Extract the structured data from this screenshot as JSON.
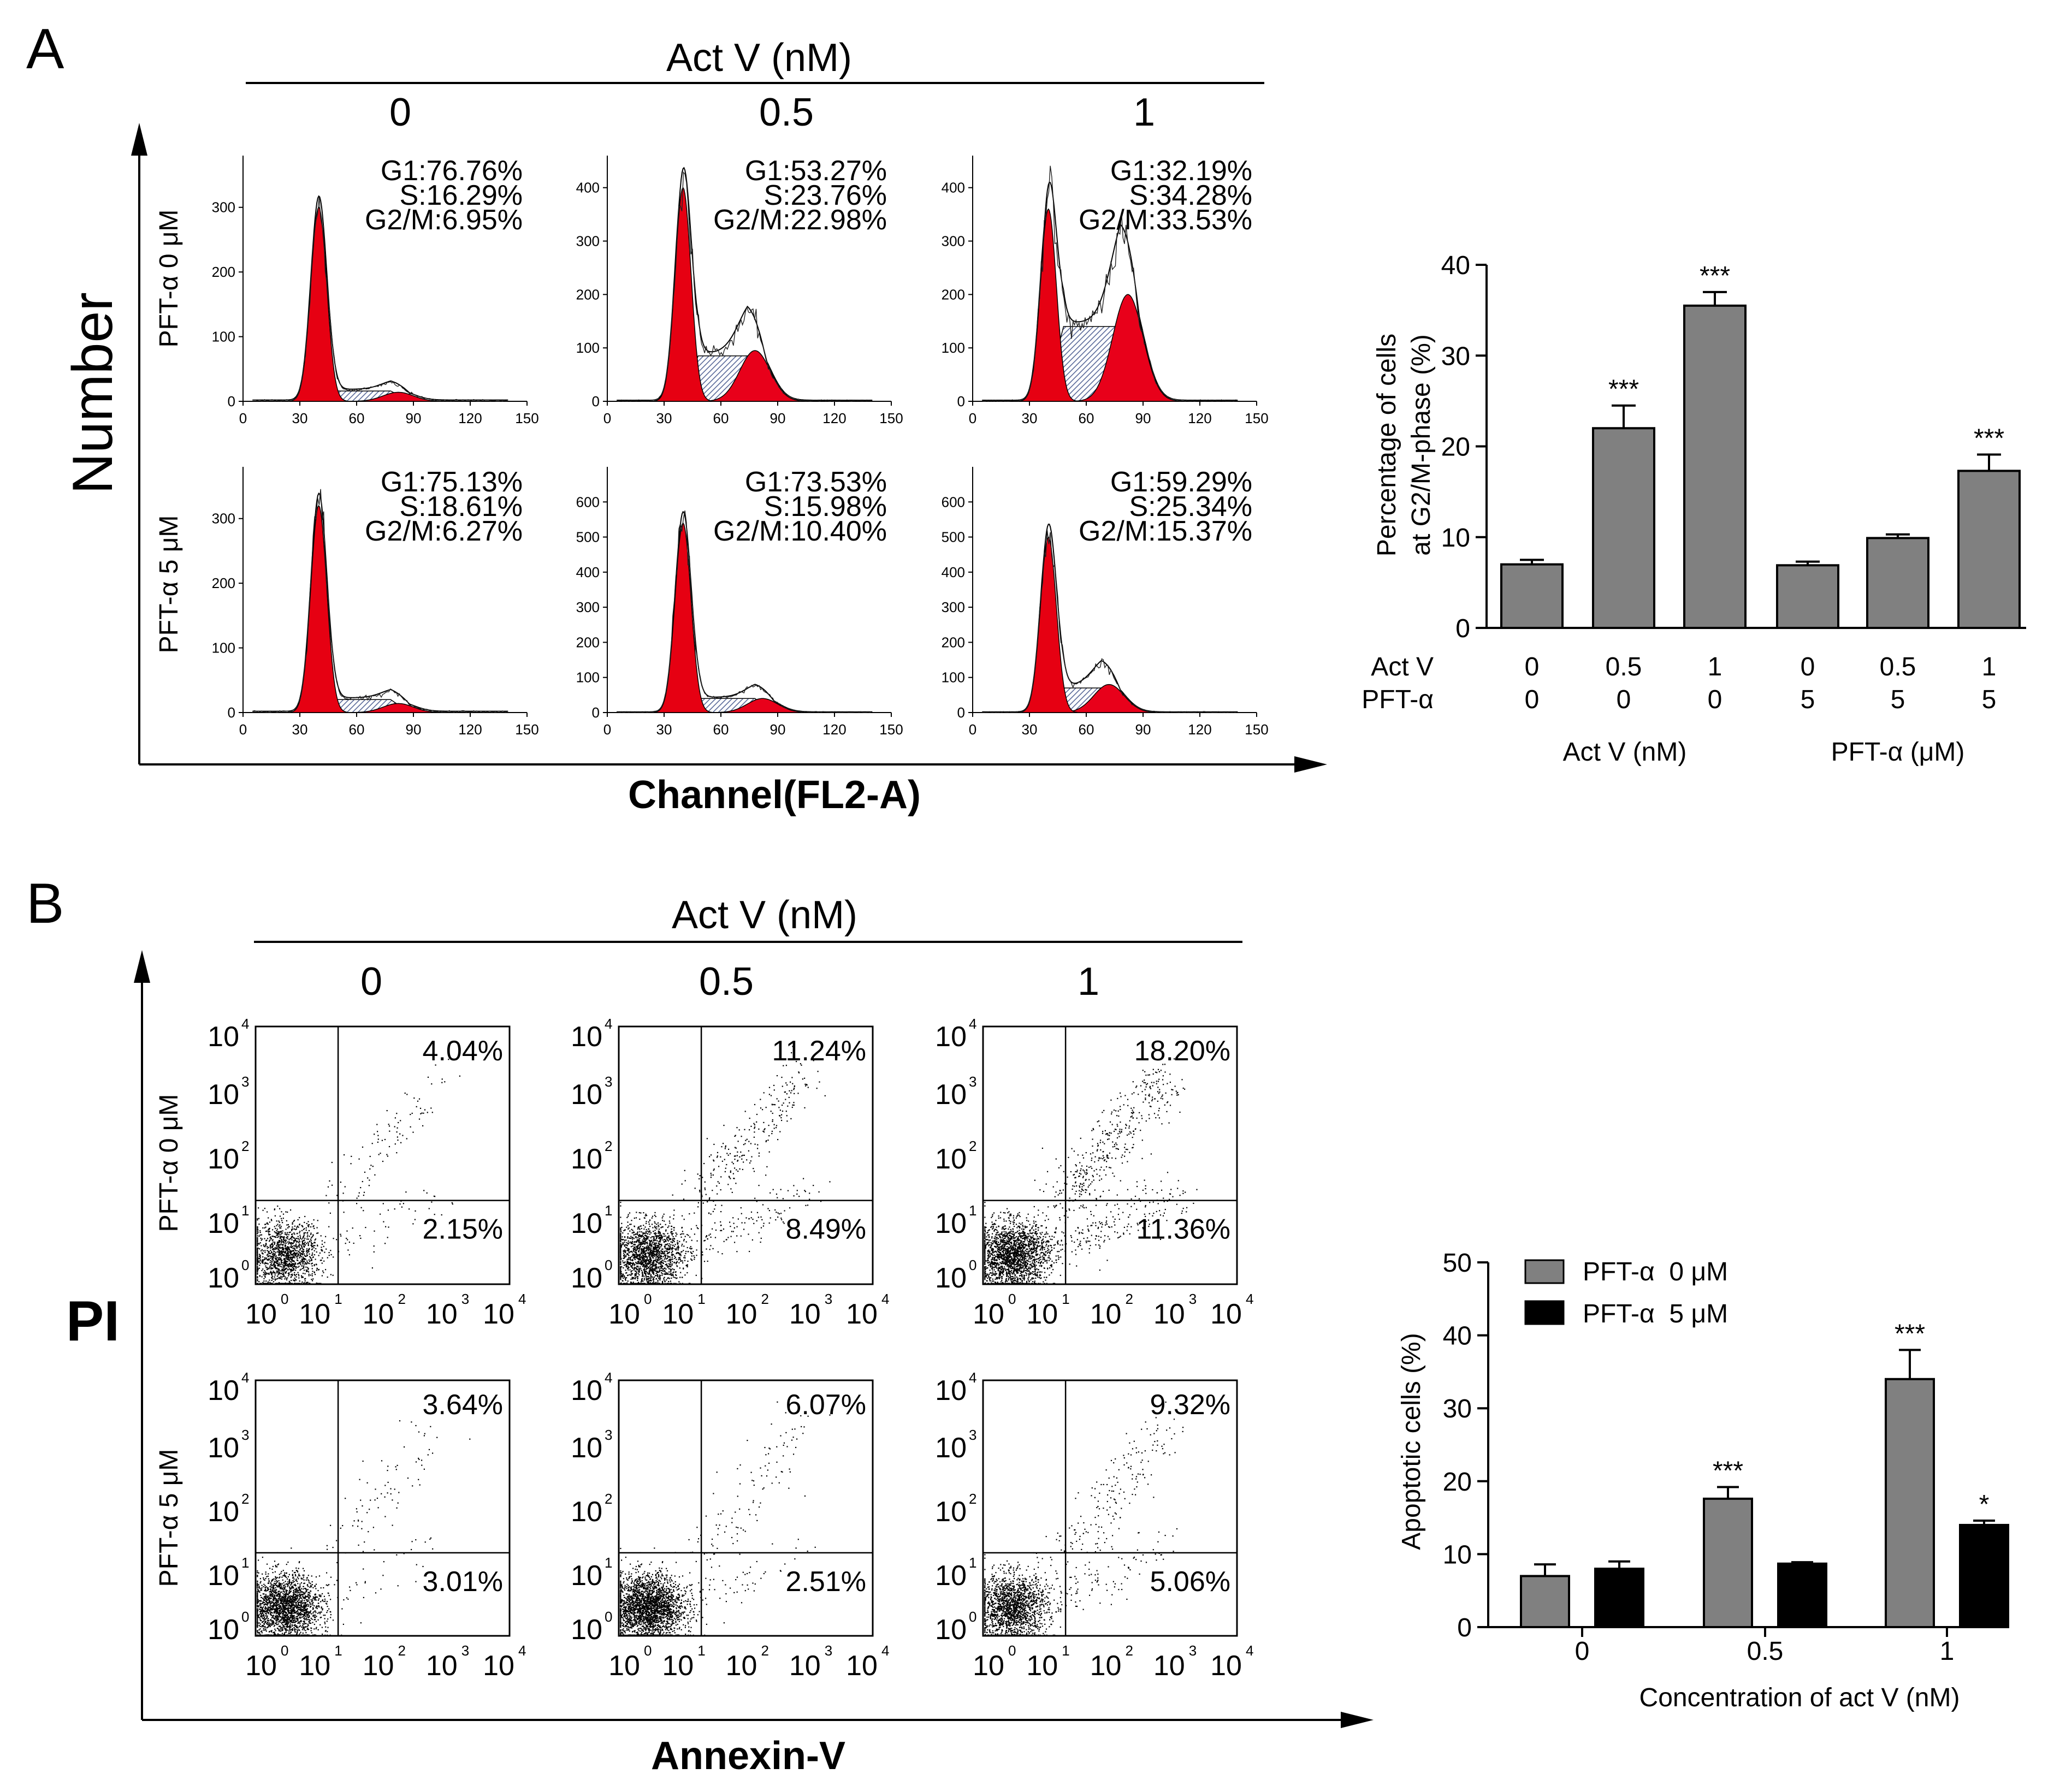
{
  "panelA": {
    "letter": "A",
    "header": "Act V (nM)",
    "columns": [
      "0",
      "0.5",
      "1"
    ],
    "rows": [
      "PFT-α 0 μM",
      "PFT-α 5 μM"
    ],
    "yLabel": "Number",
    "xLabel": "Channel(FL2-A)",
    "xTicks": [
      "0",
      "30",
      "60",
      "90",
      "120",
      "150"
    ],
    "histograms": [
      {
        "g1": "G1:76.76%",
        "s": "S:16.29%",
        "g2": "G2/M:6.95%",
        "yTicks": [
          "0",
          "100",
          "200",
          "300"
        ],
        "ymax": 380,
        "g1h": 300,
        "sh": 16,
        "g2h": 14,
        "g2mu": 82
      },
      {
        "g1": "G1:53.27%",
        "s": "S:23.76%",
        "g2": "G2/M:22.98%",
        "yTicks": [
          "0",
          "100",
          "200",
          "300",
          "400"
        ],
        "ymax": 460,
        "g1h": 400,
        "sh": 85,
        "g2h": 95,
        "g2mu": 78
      },
      {
        "g1": "G1:32.19%",
        "s": "S:34.28%",
        "g2": "G2/M:33.53%",
        "yTicks": [
          "0",
          "100",
          "200",
          "300",
          "400"
        ],
        "ymax": 460,
        "g1h": 360,
        "sh": 140,
        "g2h": 200,
        "g2mu": 82
      },
      {
        "g1": "G1:75.13%",
        "s": "S:18.61%",
        "g2": "G2/M:6.27%",
        "yTicks": [
          "0",
          "100",
          "200",
          "300"
        ],
        "ymax": 380,
        "g1h": 320,
        "sh": 20,
        "g2h": 14,
        "g2mu": 82
      },
      {
        "g1": "G1:73.53%",
        "s": "S:15.98%",
        "g2": "G2/M:10.40%",
        "yTicks": [
          "0",
          "100",
          "200",
          "300",
          "400",
          "500",
          "600"
        ],
        "ymax": 700,
        "g1h": 540,
        "sh": 40,
        "g2h": 40,
        "g2mu": 82
      },
      {
        "g1": "G1:59.29%",
        "s": "S:25.34%",
        "g2": "G2/M:15.37%",
        "yTicks": [
          "0",
          "100",
          "200",
          "300",
          "400",
          "500",
          "600"
        ],
        "ymax": 700,
        "g1h": 500,
        "sh": 70,
        "g2h": 80,
        "g2mu": 72
      }
    ]
  },
  "panelB": {
    "letter": "B",
    "header": "Act V (nM)",
    "columns": [
      "0",
      "0.5",
      "1"
    ],
    "rows": [
      "PFT-α 0 μM",
      "PFT-α 5 μM"
    ],
    "yLabel": "PI",
    "xLabel": "Annexin-V",
    "quadrants": [
      {
        "ur": "4.04%",
        "lr": "2.15%"
      },
      {
        "ur": "11.24%",
        "lr": "8.49%"
      },
      {
        "ur": "18.20%",
        "lr": "11.36%"
      },
      {
        "ur": "3.64%",
        "lr": "3.01%"
      },
      {
        "ur": "6.07%",
        "lr": "2.51%"
      },
      {
        "ur": "9.32%",
        "lr": "5.06%"
      }
    ],
    "logTicks": [
      "0",
      "1",
      "2",
      "3",
      "4"
    ],
    "logBase": "10"
  },
  "chart_data": [
    {
      "type": "bar",
      "title": "",
      "ylabel": "Percentage of cells at G2/M-phase (%)",
      "ylabel_lines": [
        "Percentage of cells",
        "at G2/M-phase (%)"
      ],
      "ylim": [
        0,
        40
      ],
      "yticks": [
        "0",
        "10",
        "20",
        "30",
        "40"
      ],
      "row_labels": [
        "Act V",
        "PFT-α"
      ],
      "act_v": [
        "0",
        "0.5",
        "1",
        "0",
        "0.5",
        "1"
      ],
      "pft": [
        "0",
        "0",
        "0",
        "5",
        "5",
        "5"
      ],
      "group_labels": [
        "Act V (nM)",
        "PFT-α (μM)"
      ],
      "values": [
        7.0,
        22.0,
        35.5,
        6.9,
        9.9,
        17.3
      ],
      "errors": [
        0.5,
        2.5,
        1.5,
        0.4,
        0.4,
        1.8
      ],
      "significance": [
        "",
        "***",
        "***",
        "",
        "",
        "***"
      ],
      "color": "#808080"
    },
    {
      "type": "bar",
      "title": "",
      "xlabel": "Concentration of act V (nM)",
      "ylabel": "Apoptotic cells (%)",
      "ylim": [
        0,
        50
      ],
      "yticks": [
        "0",
        "10",
        "20",
        "30",
        "40",
        "50"
      ],
      "categories": [
        "0",
        "0.5",
        "1"
      ],
      "series": [
        {
          "name": "PFT-α  0 μM",
          "values": [
            7.0,
            17.6,
            34.0
          ],
          "errors": [
            1.6,
            1.6,
            4.0
          ],
          "significance": [
            "",
            "***",
            "***"
          ],
          "color": "#808080"
        },
        {
          "name": "PFT-α  5 μM",
          "values": [
            8.0,
            8.7,
            14.0
          ],
          "errors": [
            1.0,
            0.2,
            0.6
          ],
          "significance": [
            "",
            "",
            "*"
          ],
          "color": "#000000"
        }
      ]
    }
  ]
}
